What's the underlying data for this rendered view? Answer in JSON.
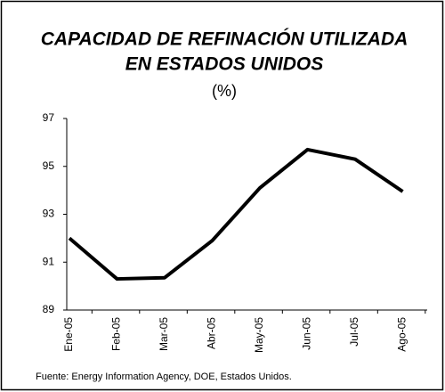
{
  "chart_data": {
    "type": "line",
    "title": [
      "CAPACIDAD DE REFINACIÓN UTILIZADA",
      "EN ESTADOS UNIDOS"
    ],
    "subtitle": "(%)",
    "categories": [
      "Ene-05",
      "Feb-05",
      "Mar-05",
      "Abr-05",
      "May-05",
      "Jun-05",
      "Jul-05",
      "Ago-05"
    ],
    "values": [
      92.0,
      90.3,
      90.35,
      91.9,
      94.1,
      95.7,
      95.3,
      93.95
    ],
    "color": "#000000",
    "ylim": [
      89,
      97
    ],
    "yticks": [
      89,
      91,
      93,
      95,
      97
    ],
    "note": "Fuente: Energy Information Agency, DOE, Estados Unidos."
  }
}
